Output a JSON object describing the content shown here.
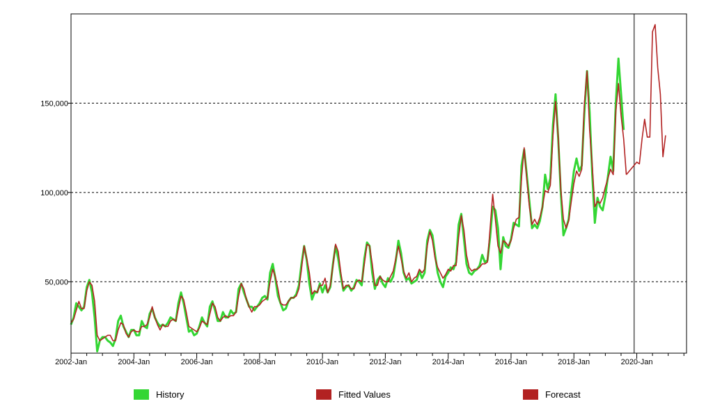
{
  "chart_data": {
    "type": "line",
    "title": "",
    "xlabel": "",
    "ylabel": "",
    "x_start": "2002-01",
    "xlim": [
      "2002-01",
      "2021-08"
    ],
    "ylim": [
      10000,
      200000
    ],
    "y_ticks": [
      50000,
      100000,
      150000
    ],
    "y_tick_labels": [
      "50,000",
      "100,000",
      "150,000"
    ],
    "x_tick_labels": [
      "2002-Jan",
      "2004-Jan",
      "2006-Jan",
      "2008-Jan",
      "2010-Jan",
      "2012-Jan",
      "2014-Jan",
      "2016-Jan",
      "2018-Jan",
      "2020-Jan"
    ],
    "grid": "horizontal-dashed",
    "legend_position": "bottom",
    "forecast_start": "2019-12",
    "series": [
      {
        "name": "History",
        "color": "#33d633",
        "start": "2002-01",
        "values": [
          26000,
          30000,
          38000,
          36000,
          34000,
          36000,
          47000,
          51000,
          44000,
          30000,
          11000,
          17000,
          19000,
          19000,
          17000,
          16000,
          14000,
          18000,
          28000,
          31000,
          25000,
          22000,
          19000,
          23000,
          23000,
          20000,
          20000,
          28000,
          25000,
          24000,
          32000,
          35000,
          30000,
          27000,
          25000,
          26000,
          25000,
          27000,
          30000,
          29000,
          28000,
          38000,
          44000,
          38000,
          30000,
          22000,
          23000,
          20000,
          21000,
          25000,
          30000,
          27000,
          25000,
          36000,
          39000,
          34000,
          28000,
          28000,
          33000,
          30000,
          30000,
          34000,
          32000,
          33000,
          46000,
          49000,
          44000,
          40000,
          36000,
          36000,
          34000,
          36000,
          38000,
          41000,
          42000,
          40000,
          55000,
          60000,
          52000,
          42000,
          38000,
          34000,
          35000,
          39000,
          41000,
          41000,
          43000,
          48000,
          60000,
          70000,
          62000,
          49000,
          40000,
          44000,
          44000,
          49000,
          44000,
          48000,
          44000,
          47000,
          60000,
          70000,
          63000,
          53000,
          45000,
          47000,
          48000,
          45000,
          47000,
          51000,
          50000,
          48000,
          63000,
          72000,
          70000,
          55000,
          46000,
          51000,
          53000,
          49000,
          47000,
          52000,
          50000,
          53000,
          62000,
          73000,
          66000,
          55000,
          51000,
          52000,
          49000,
          50000,
          51000,
          56000,
          52000,
          55000,
          73000,
          79000,
          76000,
          65000,
          55000,
          50000,
          47000,
          53000,
          55000,
          58000,
          57000,
          61000,
          82000,
          88000,
          74000,
          60000,
          55000,
          54000,
          56000,
          57000,
          59000,
          65000,
          61000,
          62000,
          75000,
          92000,
          90000,
          80000,
          57000,
          75000,
          70000,
          69000,
          74000,
          83000,
          82000,
          81000,
          115000,
          124000,
          110000,
          95000,
          80000,
          82000,
          80000,
          84000,
          92000,
          110000,
          102000,
          108000,
          138000,
          155000,
          130000,
          100000,
          76000,
          80000,
          85000,
          100000,
          112000,
          119000,
          112000,
          115000,
          145000,
          168000,
          145000,
          110000,
          83000,
          97000,
          92000,
          90000,
          98000,
          109000,
          120000,
          112000,
          150000,
          175000,
          155000,
          135000
        ]
      },
      {
        "name": "Fitted Values",
        "color": "#b22222",
        "start": "2002-01",
        "values": [
          27000,
          29000,
          34000,
          39000,
          35000,
          35000,
          45000,
          50000,
          48000,
          39000,
          20000,
          17000,
          18000,
          19000,
          20000,
          20000,
          17000,
          17000,
          23000,
          27000,
          26000,
          21000,
          19000,
          22000,
          23000,
          22000,
          22000,
          25000,
          25000,
          26000,
          30000,
          36000,
          30000,
          26000,
          23000,
          26000,
          25000,
          25000,
          28000,
          29000,
          28000,
          35000,
          42000,
          40000,
          33000,
          25000,
          24000,
          23000,
          22000,
          24000,
          28000,
          27000,
          26000,
          32000,
          38000,
          36000,
          30000,
          28000,
          30000,
          31000,
          30000,
          31000,
          31000,
          33000,
          42000,
          49000,
          46000,
          40000,
          36000,
          33000,
          36000,
          36000,
          37000,
          39000,
          40000,
          41000,
          50000,
          57000,
          53000,
          46000,
          38000,
          37000,
          37000,
          39000,
          41000,
          41000,
          42000,
          46000,
          57000,
          70000,
          63000,
          55000,
          43000,
          45000,
          44000,
          48000,
          48000,
          52000,
          44000,
          48000,
          59000,
          71000,
          67000,
          55000,
          46000,
          48000,
          48000,
          46000,
          46000,
          50000,
          51000,
          50000,
          60000,
          71000,
          70000,
          60000,
          48000,
          48000,
          53000,
          51000,
          50000,
          50000,
          53000,
          56000,
          63000,
          70000,
          63000,
          56000,
          52000,
          55000,
          50000,
          52000,
          53000,
          57000,
          55000,
          57000,
          70000,
          78000,
          73000,
          63000,
          58000,
          55000,
          52000,
          54000,
          57000,
          56000,
          59000,
          59000,
          75000,
          87000,
          79000,
          65000,
          58000,
          56000,
          57000,
          57000,
          58000,
          60000,
          60000,
          61000,
          80000,
          99000,
          85000,
          70000,
          66000,
          73000,
          72000,
          70000,
          73000,
          80000,
          85000,
          86000,
          108000,
          125000,
          108000,
          92000,
          82000,
          85000,
          82000,
          86000,
          92000,
          101000,
          100000,
          104000,
          132000,
          151000,
          131000,
          102000,
          85000,
          80000,
          84000,
          95000,
          105000,
          112000,
          109000,
          113000,
          150000,
          168000,
          135000,
          115000,
          92000,
          95000,
          94000,
          97000,
          103000,
          108000,
          113000,
          110000,
          145000,
          161000,
          143000,
          130000,
          110000
        ]
      },
      {
        "name": "Forecast",
        "color": "#b22222",
        "start": "2020-01",
        "values": [
          117000,
          116000,
          130000,
          141000,
          131000,
          131000,
          190000,
          194000,
          170000,
          155000,
          120000,
          132000
        ]
      }
    ]
  }
}
